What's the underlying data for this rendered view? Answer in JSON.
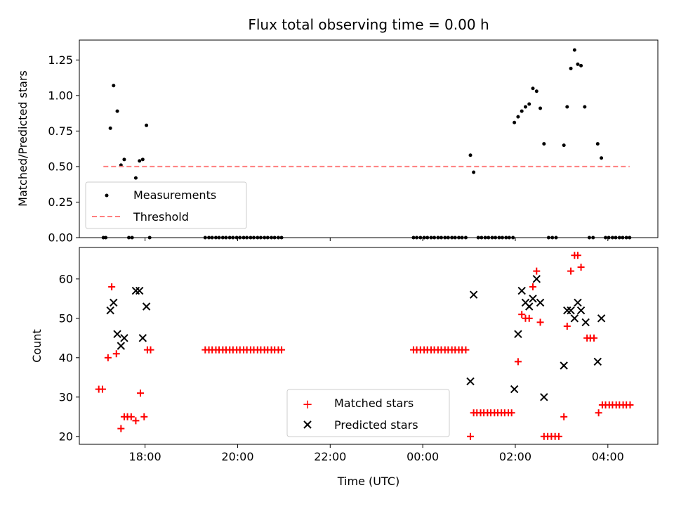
{
  "chart_data": [
    {
      "type": "scatter",
      "title": "Flux total observing time = 0.00 h",
      "xlabel": "",
      "ylabel": "Matched/Predicted stars",
      "ylim": [
        0,
        1.39
      ],
      "yticks": [
        "0.00",
        "0.25",
        "0.50",
        "0.75",
        "1.00",
        "1.25"
      ],
      "xaxis_unit": "hours since 00:00 UTC",
      "xlim": [
        -7.42,
        5.08
      ],
      "legend_position": "lower-left",
      "series": [
        {
          "name": "Measurements",
          "marker": "dot",
          "color": "#000000",
          "points": [
            [
              -6.9,
              0
            ],
            [
              -6.85,
              0
            ],
            [
              -6.75,
              0.77
            ],
            [
              -6.68,
              1.07
            ],
            [
              -6.6,
              0.89
            ],
            [
              -6.52,
              0.51
            ],
            [
              -6.45,
              0.55
            ],
            [
              -6.35,
              0
            ],
            [
              -6.28,
              0
            ],
            [
              -6.2,
              0.42
            ],
            [
              -6.12,
              0.54
            ],
            [
              -6.05,
              0.55
            ],
            [
              -5.97,
              0.79
            ],
            [
              -5.9,
              0
            ],
            [
              -4.7,
              0
            ],
            [
              -4.62,
              0
            ],
            [
              -4.55,
              0
            ],
            [
              -4.47,
              0
            ],
            [
              -4.4,
              0
            ],
            [
              -4.32,
              0
            ],
            [
              -4.25,
              0
            ],
            [
              -4.17,
              0
            ],
            [
              -4.1,
              0
            ],
            [
              -4.02,
              0
            ],
            [
              -3.95,
              0
            ],
            [
              -3.87,
              0
            ],
            [
              -3.8,
              0
            ],
            [
              -3.72,
              0
            ],
            [
              -3.65,
              0
            ],
            [
              -3.57,
              0
            ],
            [
              -3.5,
              0
            ],
            [
              -3.42,
              0
            ],
            [
              -3.35,
              0
            ],
            [
              -3.27,
              0
            ],
            [
              -3.2,
              0
            ],
            [
              -3.12,
              0
            ],
            [
              -3.05,
              0
            ],
            [
              -0.2,
              0
            ],
            [
              -0.13,
              0
            ],
            [
              -0.05,
              0
            ],
            [
              0.03,
              0
            ],
            [
              0.1,
              0
            ],
            [
              0.18,
              0
            ],
            [
              0.25,
              0
            ],
            [
              0.33,
              0
            ],
            [
              0.4,
              0
            ],
            [
              0.48,
              0
            ],
            [
              0.55,
              0
            ],
            [
              0.63,
              0
            ],
            [
              0.7,
              0
            ],
            [
              0.78,
              0
            ],
            [
              0.85,
              0
            ],
            [
              0.93,
              0
            ],
            [
              1.03,
              0.58
            ],
            [
              1.1,
              0.46
            ],
            [
              1.2,
              0
            ],
            [
              1.27,
              0
            ],
            [
              1.35,
              0
            ],
            [
              1.42,
              0
            ],
            [
              1.5,
              0
            ],
            [
              1.57,
              0
            ],
            [
              1.65,
              0
            ],
            [
              1.72,
              0
            ],
            [
              1.8,
              0
            ],
            [
              1.87,
              0
            ],
            [
              1.95,
              0
            ],
            [
              1.98,
              0.81
            ],
            [
              2.06,
              0.85
            ],
            [
              2.14,
              0.89
            ],
            [
              2.22,
              0.92
            ],
            [
              2.3,
              0.94
            ],
            [
              2.38,
              1.05
            ],
            [
              2.46,
              1.03
            ],
            [
              2.54,
              0.91
            ],
            [
              2.62,
              0.66
            ],
            [
              2.72,
              0
            ],
            [
              2.8,
              0
            ],
            [
              2.88,
              0
            ],
            [
              3.05,
              0.65
            ],
            [
              3.12,
              0.92
            ],
            [
              3.2,
              1.19
            ],
            [
              3.28,
              1.32
            ],
            [
              3.35,
              1.22
            ],
            [
              3.42,
              1.21
            ],
            [
              3.5,
              0.92
            ],
            [
              3.6,
              0
            ],
            [
              3.68,
              0
            ],
            [
              3.78,
              0.66
            ],
            [
              3.86,
              0.56
            ],
            [
              3.95,
              0
            ],
            [
              4.02,
              0
            ],
            [
              4.1,
              0
            ],
            [
              4.17,
              0
            ],
            [
              4.25,
              0
            ],
            [
              4.32,
              0
            ],
            [
              4.4,
              0
            ],
            [
              4.47,
              0
            ]
          ]
        },
        {
          "name": "Threshold",
          "marker": "dashed-line",
          "color": "#ff7f7f",
          "points": [
            [
              -6.9,
              0.5
            ],
            [
              4.47,
              0.5
            ]
          ]
        }
      ]
    },
    {
      "type": "scatter",
      "title": "",
      "xlabel": "Time (UTC)",
      "ylabel": "Count",
      "ylim": [
        18,
        68
      ],
      "yticks": [
        "20",
        "30",
        "40",
        "50",
        "60"
      ],
      "xaxis_unit": "hours since 00:00 UTC",
      "xlim": [
        -7.42,
        5.08
      ],
      "xticks": [
        {
          "value": -6,
          "label": "18:00"
        },
        {
          "value": -4,
          "label": "20:00"
        },
        {
          "value": -2,
          "label": "22:00"
        },
        {
          "value": 0,
          "label": "00:00"
        },
        {
          "value": 2,
          "label": "02:00"
        },
        {
          "value": 4,
          "label": "04:00"
        }
      ],
      "legend_position": "lower-center",
      "series": [
        {
          "name": "Matched stars",
          "marker": "plus",
          "color": "#ff0000",
          "points": [
            [
              -7.0,
              32
            ],
            [
              -6.92,
              32
            ],
            [
              -6.8,
              40
            ],
            [
              -6.72,
              58
            ],
            [
              -6.62,
              41
            ],
            [
              -6.52,
              22
            ],
            [
              -6.45,
              25
            ],
            [
              -6.38,
              25
            ],
            [
              -6.3,
              25
            ],
            [
              -6.2,
              24
            ],
            [
              -6.1,
              31
            ],
            [
              -6.02,
              25
            ],
            [
              -5.95,
              42
            ],
            [
              -5.88,
              42
            ],
            [
              -4.7,
              42
            ],
            [
              -4.62,
              42
            ],
            [
              -4.55,
              42
            ],
            [
              -4.47,
              42
            ],
            [
              -4.4,
              42
            ],
            [
              -4.32,
              42
            ],
            [
              -4.25,
              42
            ],
            [
              -4.17,
              42
            ],
            [
              -4.1,
              42
            ],
            [
              -4.02,
              42
            ],
            [
              -3.95,
              42
            ],
            [
              -3.87,
              42
            ],
            [
              -3.8,
              42
            ],
            [
              -3.72,
              42
            ],
            [
              -3.65,
              42
            ],
            [
              -3.57,
              42
            ],
            [
              -3.5,
              42
            ],
            [
              -3.42,
              42
            ],
            [
              -3.35,
              42
            ],
            [
              -3.27,
              42
            ],
            [
              -3.2,
              42
            ],
            [
              -3.12,
              42
            ],
            [
              -3.05,
              42
            ],
            [
              -0.2,
              42
            ],
            [
              -0.13,
              42
            ],
            [
              -0.05,
              42
            ],
            [
              0.03,
              42
            ],
            [
              0.1,
              42
            ],
            [
              0.18,
              42
            ],
            [
              0.25,
              42
            ],
            [
              0.33,
              42
            ],
            [
              0.4,
              42
            ],
            [
              0.48,
              42
            ],
            [
              0.55,
              42
            ],
            [
              0.63,
              42
            ],
            [
              0.7,
              42
            ],
            [
              0.78,
              42
            ],
            [
              0.85,
              42
            ],
            [
              0.93,
              42
            ],
            [
              1.03,
              20
            ],
            [
              1.1,
              26
            ],
            [
              1.17,
              26
            ],
            [
              1.25,
              26
            ],
            [
              1.32,
              26
            ],
            [
              1.4,
              26
            ],
            [
              1.47,
              26
            ],
            [
              1.55,
              26
            ],
            [
              1.62,
              26
            ],
            [
              1.7,
              26
            ],
            [
              1.77,
              26
            ],
            [
              1.85,
              26
            ],
            [
              1.92,
              26
            ],
            [
              2.06,
              39
            ],
            [
              2.14,
              51
            ],
            [
              2.22,
              50
            ],
            [
              2.3,
              50
            ],
            [
              2.38,
              58
            ],
            [
              2.46,
              62
            ],
            [
              2.54,
              49
            ],
            [
              2.62,
              20
            ],
            [
              2.7,
              20
            ],
            [
              2.78,
              20
            ],
            [
              2.86,
              20
            ],
            [
              2.94,
              20
            ],
            [
              3.05,
              25
            ],
            [
              3.12,
              48
            ],
            [
              3.2,
              62
            ],
            [
              3.28,
              66
            ],
            [
              3.35,
              66
            ],
            [
              3.42,
              63
            ],
            [
              3.55,
              45
            ],
            [
              3.62,
              45
            ],
            [
              3.7,
              45
            ],
            [
              3.8,
              26
            ],
            [
              3.88,
              28
            ],
            [
              3.95,
              28
            ],
            [
              4.03,
              28
            ],
            [
              4.1,
              28
            ],
            [
              4.18,
              28
            ],
            [
              4.25,
              28
            ],
            [
              4.33,
              28
            ],
            [
              4.4,
              28
            ],
            [
              4.48,
              28
            ]
          ]
        },
        {
          "name": "Predicted stars",
          "marker": "x",
          "color": "#000000",
          "points": [
            [
              -6.75,
              52
            ],
            [
              -6.68,
              54
            ],
            [
              -6.6,
              46
            ],
            [
              -6.52,
              43
            ],
            [
              -6.45,
              45
            ],
            [
              -6.2,
              57
            ],
            [
              -6.12,
              57
            ],
            [
              -6.05,
              45
            ],
            [
              -5.97,
              53
            ],
            [
              1.03,
              34
            ],
            [
              1.1,
              56
            ],
            [
              1.98,
              32
            ],
            [
              2.06,
              46
            ],
            [
              2.14,
              57
            ],
            [
              2.22,
              54
            ],
            [
              2.3,
              53
            ],
            [
              2.38,
              55
            ],
            [
              2.46,
              60
            ],
            [
              2.54,
              54
            ],
            [
              2.62,
              30
            ],
            [
              3.05,
              38
            ],
            [
              3.12,
              52
            ],
            [
              3.2,
              52
            ],
            [
              3.28,
              50
            ],
            [
              3.35,
              54
            ],
            [
              3.42,
              52
            ],
            [
              3.52,
              49
            ],
            [
              3.78,
              39
            ],
            [
              3.86,
              50
            ]
          ]
        }
      ]
    }
  ]
}
